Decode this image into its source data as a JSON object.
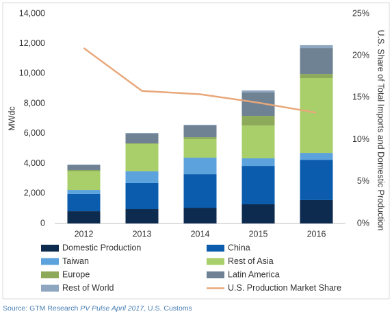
{
  "chart_data": {
    "type": "bar",
    "stacked": true,
    "y_label": "MWdc",
    "y2_label": "U.S. Share of Total Imports and Domestic Production",
    "categories": [
      "2012",
      "2013",
      "2014",
      "2015",
      "2016"
    ],
    "series": [
      {
        "name": "Domestic Production",
        "color": "#0d2a4f",
        "values": [
          820,
          960,
          1050,
          1280,
          1560
        ]
      },
      {
        "name": "China",
        "color": "#0b5cad",
        "values": [
          1150,
          1740,
          2240,
          2560,
          2690
        ]
      },
      {
        "name": "Taiwan",
        "color": "#5ca3dd",
        "values": [
          270,
          780,
          1100,
          510,
          460
        ]
      },
      {
        "name": "Rest of Asia",
        "color": "#a9cf6b",
        "values": [
          1240,
          1830,
          1240,
          2190,
          4990
        ]
      },
      {
        "name": "Europe",
        "color": "#8daa5a",
        "values": [
          90,
          40,
          130,
          640,
          270
        ]
      },
      {
        "name": "Latin America",
        "color": "#6f8294",
        "values": [
          320,
          640,
          780,
          1560,
          1740
        ]
      },
      {
        "name": "Rest of World",
        "color": "#8ea6bf",
        "values": [
          40,
          50,
          50,
          140,
          190
        ]
      },
      {
        "name": "U.S. Production Market Share",
        "color": "#e8a77a",
        "type": "line",
        "axis": "y2",
        "values": [
          20.9,
          15.8,
          15.4,
          14.4,
          13.2
        ]
      }
    ],
    "ylim": [
      0,
      14000
    ],
    "yticks": [
      0,
      {
        "value": 2000,
        "label": "2,000"
      },
      {
        "value": 4000,
        "label": "4,000"
      },
      {
        "value": 6000,
        "label": "6,000"
      },
      {
        "value": 8000,
        "label": "8,000"
      },
      {
        "value": 10000,
        "label": "10,000"
      },
      {
        "value": 12000,
        "label": "12,000"
      },
      {
        "value": 14000,
        "label": "14,000"
      }
    ],
    "y2lim": [
      0,
      25
    ],
    "y2ticks": [
      {
        "value": 0,
        "label": "0%"
      },
      {
        "value": 5,
        "label": "5%"
      },
      {
        "value": 10,
        "label": "10%"
      },
      {
        "value": 15,
        "label": "15%"
      },
      {
        "value": 20,
        "label": "20%"
      },
      {
        "value": 25,
        "label": "25%"
      }
    ],
    "grid": false,
    "legend": "bottom",
    "source": [
      "Source: GTM Research ",
      "PV Pulse April 2017",
      ", U.S. Customs"
    ]
  }
}
